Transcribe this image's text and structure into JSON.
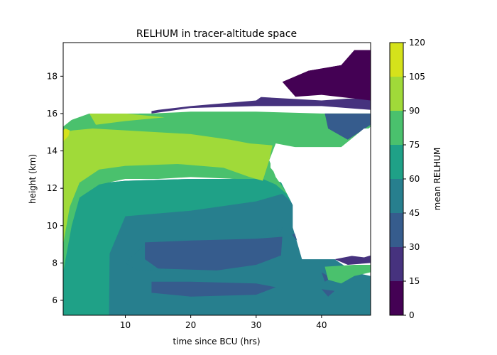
{
  "chart_data": {
    "type": "contour",
    "title": "RELHUM in tracer-altitude space",
    "xlabel": "time since BCU (hrs)",
    "ylabel": "height (km)",
    "xlim": [
      0.5,
      47.5
    ],
    "ylim": [
      5.2,
      19.8
    ],
    "xticks": [
      10,
      20,
      30,
      40
    ],
    "yticks": [
      6,
      8,
      10,
      12,
      14,
      16,
      18
    ],
    "colorbar": {
      "label": "mean RELHUM",
      "levels": [
        0,
        15,
        30,
        45,
        60,
        75,
        90,
        105,
        120
      ],
      "colors": [
        "#440154",
        "#46327e",
        "#365c8d",
        "#277f8e",
        "#1fa187",
        "#4ac16d",
        "#a0da39",
        "#d5e21b"
      ]
    },
    "grid": false,
    "legend": "none",
    "fields": [
      {
        "level_index": 3,
        "points": [
          [
            0.5,
            5.2
          ],
          [
            47.5,
            5.2
          ],
          [
            47.5,
            7.3
          ],
          [
            45,
            7.5
          ],
          [
            42,
            8.2
          ],
          [
            37,
            8.2
          ],
          [
            35.6,
            9.9
          ],
          [
            35.6,
            11.1
          ],
          [
            34,
            12.2
          ],
          [
            31,
            12.6
          ],
          [
            26,
            12.5
          ],
          [
            20,
            12.5
          ],
          [
            10,
            12.4
          ],
          [
            4,
            12.2
          ],
          [
            0.5,
            11
          ]
        ]
      },
      {
        "level_index": 4,
        "points": [
          [
            0.5,
            5.2
          ],
          [
            7.5,
            5.2
          ],
          [
            7.6,
            8.5
          ],
          [
            10,
            10.5
          ],
          [
            20,
            10.8
          ],
          [
            30,
            11.3
          ],
          [
            34,
            11.7
          ],
          [
            35.6,
            11.2
          ],
          [
            34,
            12.3
          ],
          [
            31,
            12.6
          ],
          [
            26,
            12.5
          ],
          [
            20,
            12.5
          ],
          [
            10,
            12.4
          ],
          [
            4,
            12.2
          ],
          [
            0.5,
            11
          ]
        ]
      },
      {
        "level_index": 5,
        "points": [
          [
            0.5,
            7.5
          ],
          [
            1.8,
            10
          ],
          [
            3,
            11.5
          ],
          [
            6,
            12.2
          ],
          [
            10,
            12.5
          ],
          [
            15,
            12.5
          ],
          [
            20,
            12.6
          ],
          [
            27,
            12.5
          ],
          [
            31,
            12.5
          ],
          [
            33,
            12.2
          ],
          [
            35,
            11.6
          ],
          [
            33,
            12.6
          ],
          [
            32,
            13.5
          ],
          [
            33,
            14.4
          ],
          [
            36,
            14.2
          ],
          [
            44,
            14.2
          ],
          [
            47.5,
            15.3
          ],
          [
            47.5,
            16.0
          ],
          [
            40,
            16.0
          ],
          [
            30,
            16.1
          ],
          [
            20,
            16.1
          ],
          [
            14,
            16.0
          ],
          [
            4.5,
            16.0
          ],
          [
            0.5,
            15.5
          ]
        ]
      },
      {
        "level_index": 6,
        "points": [
          [
            0.5,
            9
          ],
          [
            1.5,
            11
          ],
          [
            3,
            12.3
          ],
          [
            6,
            13
          ],
          [
            10,
            13.2
          ],
          [
            18,
            13.3
          ],
          [
            25,
            13.1
          ],
          [
            29,
            12.6
          ],
          [
            31,
            12.4
          ],
          [
            32,
            13.5
          ],
          [
            32.5,
            14.3
          ],
          [
            29,
            14.4
          ],
          [
            26,
            14.6
          ],
          [
            20,
            14.9
          ],
          [
            10,
            15.1
          ],
          [
            5,
            15.2
          ],
          [
            2,
            15.1
          ],
          [
            0.5,
            15.0
          ]
        ]
      },
      {
        "level_index": 6,
        "points": [
          [
            5.5,
            15.4
          ],
          [
            10,
            15.6
          ],
          [
            16,
            15.8
          ],
          [
            10,
            16.0
          ],
          [
            4.5,
            16.0
          ]
        ]
      },
      {
        "level_index": 7,
        "points": [
          [
            0.5,
            14.5
          ],
          [
            1.3,
            14.8
          ],
          [
            1.5,
            15.1
          ],
          [
            0.8,
            15.2
          ],
          [
            0.5,
            15.1
          ]
        ]
      },
      {
        "level_index": 3,
        "points": [
          [
            10,
            8
          ],
          [
            13,
            9
          ],
          [
            20,
            9.3
          ],
          [
            30,
            9.3
          ],
          [
            34,
            9.9
          ],
          [
            33,
            8.9
          ],
          [
            30,
            8.1
          ],
          [
            20,
            7.7
          ],
          [
            12,
            7.6
          ]
        ]
      },
      {
        "level_index": 2,
        "points": [
          [
            13,
            9.1
          ],
          [
            20,
            9.2
          ],
          [
            30,
            9.3
          ],
          [
            34,
            9.4
          ],
          [
            33.8,
            8.4
          ],
          [
            30,
            7.9
          ],
          [
            24,
            7.6
          ],
          [
            15,
            7.7
          ],
          [
            13,
            8.2
          ]
        ]
      },
      {
        "level_index": 2,
        "points": [
          [
            14,
            7.0
          ],
          [
            20,
            7.0
          ],
          [
            30,
            6.9
          ],
          [
            33,
            6.7
          ],
          [
            30,
            6.3
          ],
          [
            20,
            6.2
          ],
          [
            14,
            6.4
          ]
        ]
      },
      {
        "level_index": 2,
        "points": [
          [
            35.5,
            9.5
          ],
          [
            37,
            9.8
          ],
          [
            36.5,
            9.1
          ]
        ]
      },
      {
        "level_index": 2,
        "points": [
          [
            40,
            7.5
          ],
          [
            41.5,
            7.2
          ],
          [
            40.5,
            7.0
          ]
        ]
      },
      {
        "level_index": 5,
        "points": [
          [
            40.5,
            7.8
          ],
          [
            45,
            7.9
          ],
          [
            47.5,
            7.9
          ],
          [
            47.5,
            7.5
          ],
          [
            45,
            7.3
          ],
          [
            43,
            6.9
          ],
          [
            41,
            7.1
          ]
        ]
      },
      {
        "level_index": 2,
        "points": [
          [
            40,
            6.6
          ],
          [
            42,
            6.5
          ],
          [
            41,
            6.2
          ]
        ]
      },
      {
        "level_index": 2,
        "points": [
          [
            40.5,
            16.0
          ],
          [
            47.5,
            16.0
          ],
          [
            47.5,
            15.4
          ],
          [
            44,
            14.6
          ],
          [
            41,
            15.2
          ]
        ]
      },
      {
        "level_index": 1,
        "points": [
          [
            14,
            16.0
          ],
          [
            20,
            16.3
          ],
          [
            30,
            16.4
          ],
          [
            40,
            16.4
          ],
          [
            47.5,
            16.2
          ],
          [
            47.5,
            16.8
          ],
          [
            44,
            16.8
          ],
          [
            40,
            16.7
          ],
          [
            30,
            16.9
          ],
          [
            20,
            16.8
          ],
          [
            14,
            16.2
          ]
        ]
      },
      {
        "level_index": 1,
        "points": [
          [
            42,
            8.2
          ],
          [
            45,
            8.4
          ],
          [
            47.5,
            8.4
          ],
          [
            47.5,
            8.0
          ],
          [
            44,
            7.9
          ]
        ]
      },
      {
        "level_index": 0,
        "points": [
          [
            36,
            16.9
          ],
          [
            40,
            17.0
          ],
          [
            47.5,
            16.7
          ],
          [
            47.5,
            19.4
          ],
          [
            45,
            19.4
          ],
          [
            43,
            18.6
          ],
          [
            38,
            18.3
          ],
          [
            34,
            17.7
          ]
        ]
      }
    ],
    "white_region": [
      [
        32.2,
        13.5
      ],
      [
        33.6,
        13.5
      ],
      [
        33.6,
        14.2
      ],
      [
        36.8,
        14.2
      ],
      [
        36.8,
        14.2
      ],
      [
        40,
        14.2
      ],
      [
        43,
        14.2
      ],
      [
        46.5,
        15.2
      ],
      [
        47.5,
        15.2
      ],
      [
        47.5,
        8.4
      ],
      [
        46.5,
        8.3
      ],
      [
        44,
        8.4
      ],
      [
        42,
        8.4
      ],
      [
        37,
        8.4
      ],
      [
        35.6,
        9.9
      ],
      [
        35.6,
        11.1
      ],
      [
        33.4,
        12.6
      ],
      [
        32.2,
        13.1
      ]
    ],
    "white_top": [
      [
        0.5,
        15.3
      ],
      [
        3,
        16.0
      ],
      [
        12,
        16.0
      ],
      [
        15,
        16.2
      ],
      [
        20,
        16.4
      ],
      [
        30,
        16.7
      ],
      [
        34,
        17.7
      ],
      [
        38,
        18.3
      ],
      [
        43,
        18.6
      ],
      [
        45,
        19.4
      ],
      [
        47.5,
        19.4
      ],
      [
        47.5,
        19.8
      ],
      [
        0.5,
        19.8
      ]
    ]
  }
}
